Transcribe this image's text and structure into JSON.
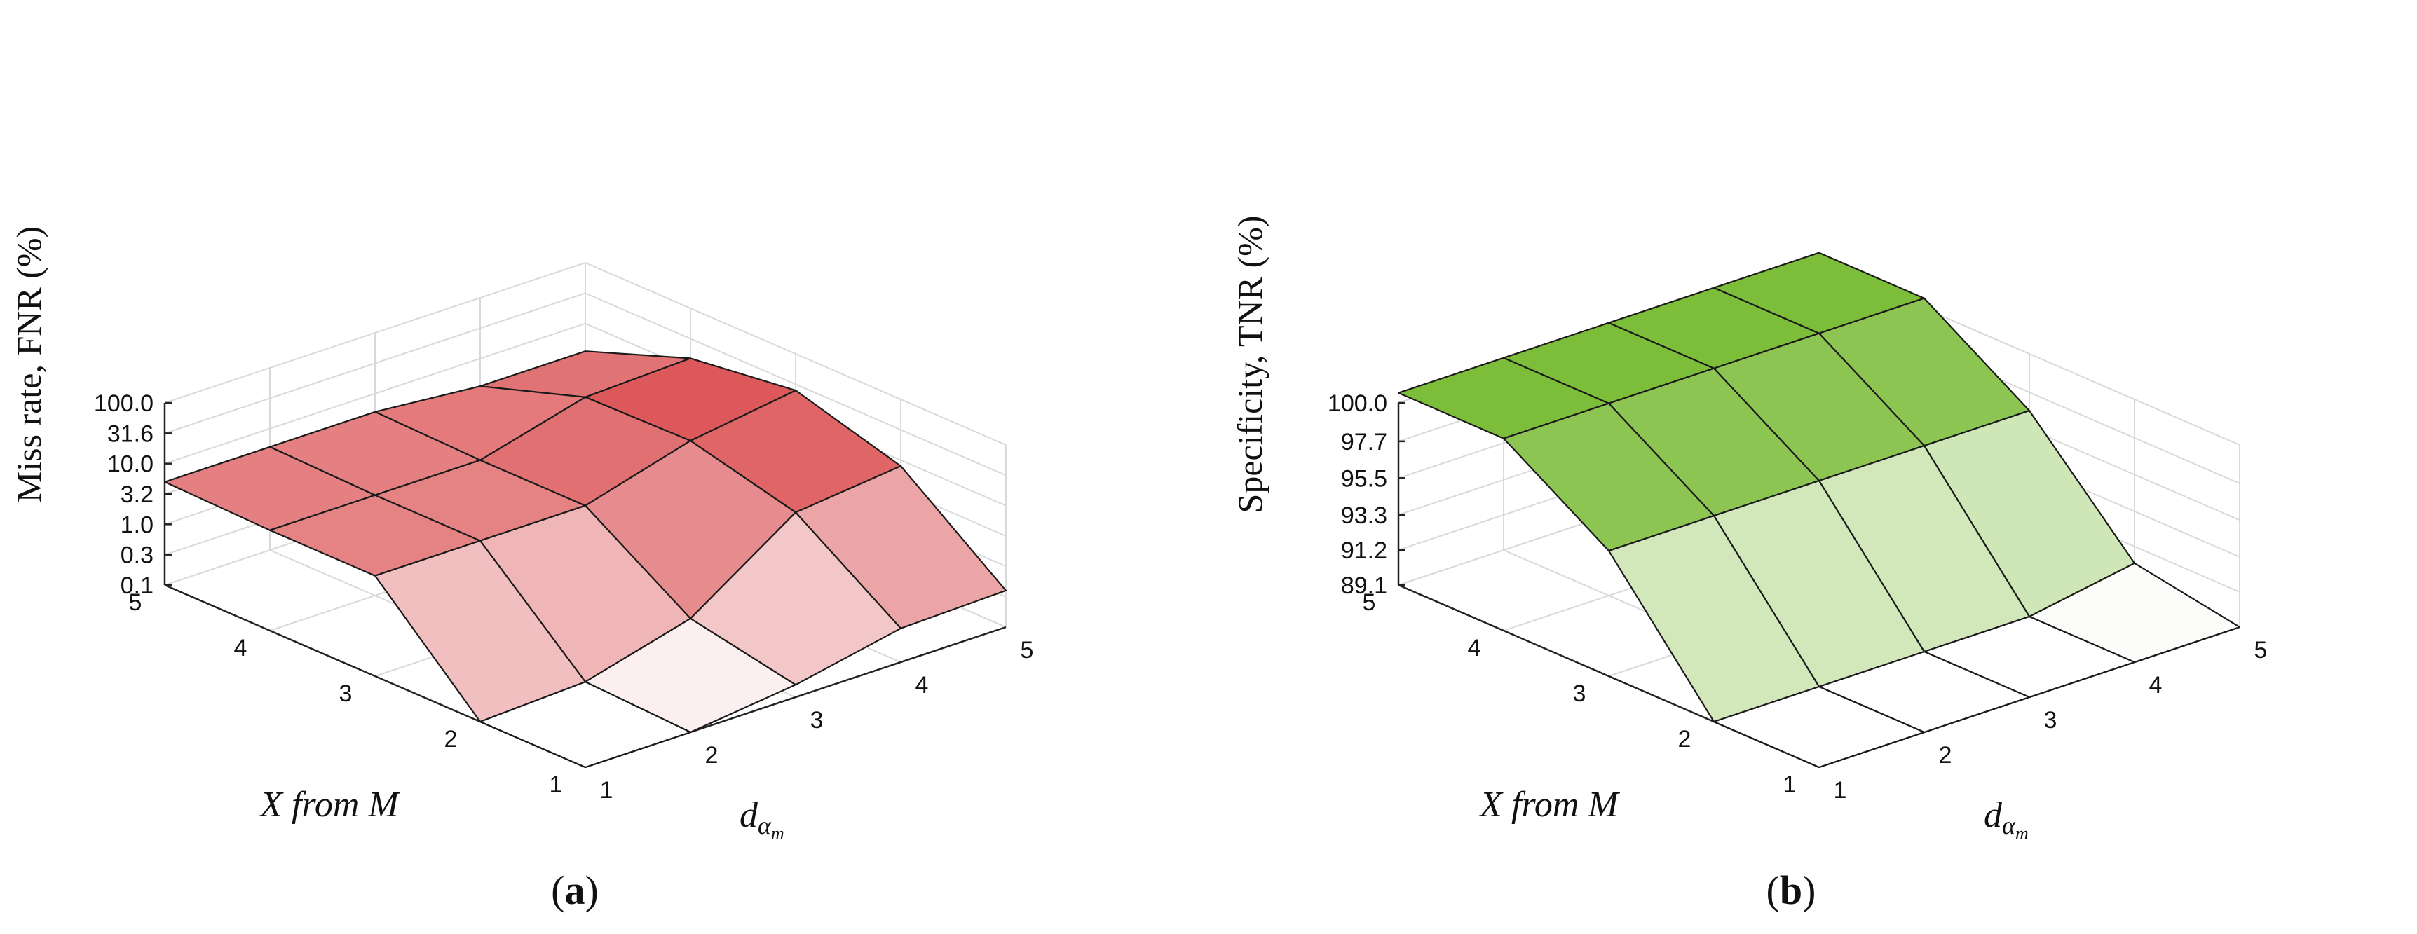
{
  "chart_data": [
    {
      "panel": "a",
      "caption_letter": "a",
      "type": "surface3d",
      "zlabel": "Miss rate, FNR (%)",
      "xlabel": "X from M",
      "ylabel_base": "d",
      "ylabel_sub": "α",
      "ylabel_subsub": "m",
      "z_scale": "log",
      "z_ticks": [
        "0.1",
        "0.3",
        "1.0",
        "3.2",
        "10.0",
        "31.6",
        "100.0"
      ],
      "z_tick_values": [
        0.1,
        0.316,
        1.0,
        3.16,
        10.0,
        31.6,
        100.0
      ],
      "zlim": [
        0.1,
        100
      ],
      "x_ticks": [
        "1",
        "2",
        "3",
        "4",
        "5"
      ],
      "y_ticks": [
        "1",
        "2",
        "3",
        "4",
        "5"
      ],
      "color_low": "#ffffff",
      "color_high": "#d01c1f",
      "z": [
        [
          0.1,
          0.1,
          4.5,
          4.5,
          5.0
        ],
        [
          0.1,
          0.12,
          4.5,
          4.5,
          5.0
        ],
        [
          0.16,
          0.35,
          4.5,
          4.5,
          5.0
        ],
        [
          0.36,
          5.2,
          14.0,
          13.0,
          3.5
        ],
        [
          0.4,
          8.0,
          25.0,
          15.0,
          3.5
        ]
      ]
    },
    {
      "panel": "b",
      "caption_letter": "b",
      "type": "surface3d",
      "zlabel": "Specificity, TNR (%)",
      "xlabel": "X from M",
      "ylabel_base": "d",
      "ylabel_sub": "α",
      "ylabel_subsub": "m",
      "z_scale": "linear",
      "z_ticks": [
        "89.1",
        "91.2",
        "93.3",
        "95.5",
        "97.7",
        "100.0"
      ],
      "z_tick_values": [
        89.1,
        91.2,
        93.3,
        95.5,
        97.7,
        100.0
      ],
      "zlim": [
        89.1,
        100.0
      ],
      "x_ticks": [
        "1",
        "2",
        "3",
        "4",
        "5"
      ],
      "y_ticks": [
        "1",
        "2",
        "3",
        "4",
        "5"
      ],
      "color_low": "#ffffff",
      "color_high": "#7cbd3a",
      "z": [
        [
          89.1,
          89.1,
          96.6,
          100.6,
          100.6
        ],
        [
          89.1,
          89.1,
          96.6,
          100.6,
          100.6
        ],
        [
          89.1,
          89.1,
          96.6,
          100.6,
          100.6
        ],
        [
          89.1,
          89.1,
          96.6,
          100.6,
          100.6
        ],
        [
          89.1,
          90.2,
          96.6,
          100.6,
          100.6
        ]
      ]
    }
  ]
}
